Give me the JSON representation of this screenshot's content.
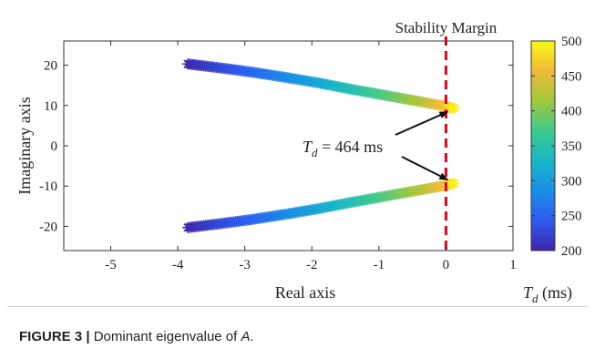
{
  "chart_data": {
    "type": "scatter",
    "xlabel": "Real axis",
    "ylabel": "Imaginary axis",
    "xlim": [
      -5.7,
      1.0
    ],
    "ylim": [
      -26,
      26
    ],
    "xticks": [
      -5,
      -4,
      -3,
      -2,
      -1,
      0,
      1
    ],
    "yticks": [
      20,
      10,
      0,
      -10,
      -20
    ],
    "grid": false,
    "marker": "asterisk",
    "color_variable": "Td (ms)",
    "colorbar": {
      "label_main": "T",
      "label_sub": "d",
      "label_unit": " (ms)",
      "range": [
        200,
        500
      ],
      "ticks": [
        500,
        450,
        400,
        350,
        300,
        250,
        200
      ],
      "colormap": [
        "#3e26a8",
        "#2e5bf0",
        "#1a8ee6",
        "#18b6c8",
        "#3fca8d",
        "#a2c73c",
        "#f0ba38",
        "#f9fb15"
      ]
    },
    "series": [
      {
        "branch": "upper",
        "points": [
          {
            "x": -3.85,
            "y": 20.3,
            "td": 200
          },
          {
            "x": -3.4,
            "y": 19.4,
            "td": 225
          },
          {
            "x": -2.9,
            "y": 18.3,
            "td": 250
          },
          {
            "x": -2.4,
            "y": 17.0,
            "td": 280
          },
          {
            "x": -1.9,
            "y": 15.6,
            "td": 310
          },
          {
            "x": -1.4,
            "y": 14.0,
            "td": 345
          },
          {
            "x": -0.9,
            "y": 12.5,
            "td": 380
          },
          {
            "x": -0.4,
            "y": 11.0,
            "td": 420
          },
          {
            "x": 0.0,
            "y": 9.8,
            "td": 464
          },
          {
            "x": 0.15,
            "y": 9.2,
            "td": 500
          }
        ]
      },
      {
        "branch": "lower",
        "points": [
          {
            "x": -3.85,
            "y": -20.3,
            "td": 200
          },
          {
            "x": -3.4,
            "y": -19.4,
            "td": 225
          },
          {
            "x": -2.9,
            "y": -18.3,
            "td": 250
          },
          {
            "x": -2.4,
            "y": -17.0,
            "td": 280
          },
          {
            "x": -1.9,
            "y": -15.6,
            "td": 310
          },
          {
            "x": -1.4,
            "y": -14.0,
            "td": 345
          },
          {
            "x": -0.9,
            "y": -12.5,
            "td": 380
          },
          {
            "x": -0.4,
            "y": -11.0,
            "td": 420
          },
          {
            "x": 0.0,
            "y": -9.8,
            "td": 464
          },
          {
            "x": 0.15,
            "y": -9.2,
            "td": 500
          }
        ]
      }
    ],
    "stability_margin": {
      "x": 0,
      "label": "Stability Margin",
      "color": "#e8001c"
    },
    "annotation": {
      "text_main": "T",
      "text_sub": "d",
      "text_value": " = 464 ms",
      "arrows_to": [
        {
          "x": 0.0,
          "y": 9.8
        },
        {
          "x": 0.0,
          "y": -9.8
        }
      ]
    }
  },
  "caption": {
    "lead": "FIGURE 3 |",
    "text": " Dominant eigenvalue of ",
    "math": "A",
    "end": "."
  }
}
